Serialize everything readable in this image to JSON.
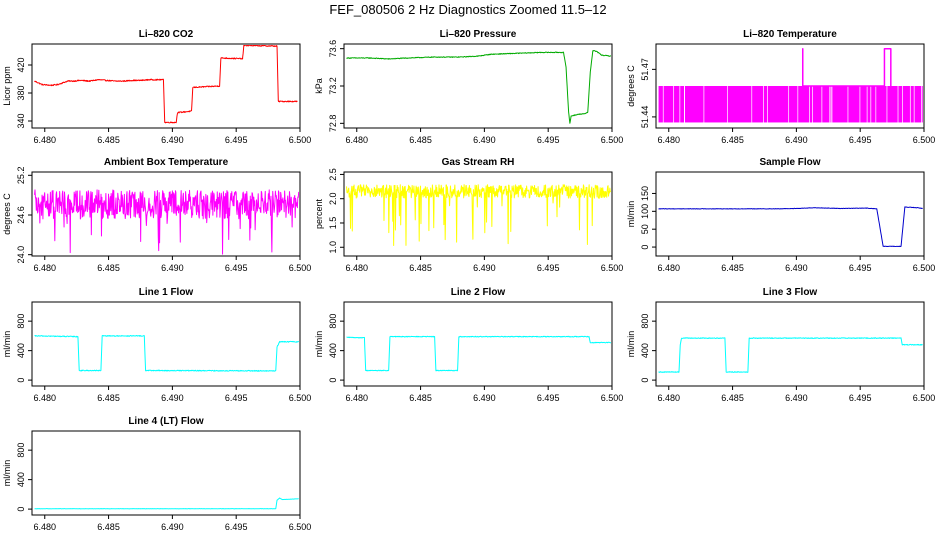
{
  "title": "FEF_080506  2 Hz Diagnostics Zoomed 11.5–12",
  "chart_data": [
    {
      "type": "line",
      "title": "Li–820 CO2",
      "ylabel": "Licor ppm",
      "color": "#ff0000",
      "xlim": [
        6.479,
        6.5
      ],
      "ylim": [
        330,
        450
      ],
      "yticks": [
        "340",
        "380",
        "420"
      ],
      "ytick_values": [
        340,
        380,
        420
      ],
      "noise": 0.8,
      "x_ticks": [
        "6.480",
        "6.485",
        "6.490",
        "6.495",
        "6.500"
      ],
      "x_tick_values": [
        6.48,
        6.485,
        6.49,
        6.495,
        6.5
      ],
      "series": [
        {
          "x": [
            6.4792,
            6.4798,
            6.4805,
            6.481,
            6.4818,
            6.4822,
            6.4828,
            6.4835,
            6.4842,
            6.4848,
            6.4855,
            6.4862,
            6.4868,
            6.4875,
            6.4882,
            6.4888,
            6.4893,
            6.4894,
            6.4903,
            6.4904,
            6.4915,
            6.4916,
            6.4937,
            6.4938,
            6.4955,
            6.4956,
            6.4982,
            6.4983,
            6.4998
          ],
          "y": [
            397,
            392,
            391,
            392,
            397,
            397,
            398,
            397,
            399,
            398,
            397,
            397,
            398,
            398,
            399,
            399,
            399,
            338,
            338,
            352,
            354,
            388,
            390,
            430,
            429,
            448,
            447,
            368,
            368
          ]
        }
      ]
    },
    {
      "type": "line",
      "title": "Li–820 Pressure",
      "ylabel": "kPa",
      "color": "#00aa00",
      "xlim": [
        6.479,
        6.5
      ],
      "ylim": [
        72.75,
        73.65
      ],
      "yticks": [
        "72.8",
        "73.2",
        "73.6"
      ],
      "ytick_values": [
        72.8,
        73.2,
        73.6
      ],
      "noise": 0.004,
      "x_ticks": [
        "6.480",
        "6.485",
        "6.490",
        "6.495",
        "6.500"
      ],
      "x_tick_values": [
        6.48,
        6.485,
        6.49,
        6.495,
        6.5
      ],
      "series": [
        {
          "x": [
            6.4792,
            6.481,
            6.4825,
            6.484,
            6.486,
            6.488,
            6.4895,
            6.4905,
            6.4925,
            6.4945,
            6.4962,
            6.4964,
            6.4966,
            6.4967,
            6.4968,
            6.4975,
            6.4978,
            6.4981,
            6.4983,
            6.4985,
            6.4988,
            6.4992,
            6.4999
          ],
          "y": [
            73.5,
            73.5,
            73.49,
            73.5,
            73.51,
            73.51,
            73.52,
            73.54,
            73.55,
            73.56,
            73.56,
            73.4,
            72.92,
            72.8,
            72.88,
            72.9,
            72.9,
            72.92,
            73.35,
            73.58,
            73.57,
            73.53,
            73.52
          ]
        }
      ]
    },
    {
      "type": "line",
      "title": "Li–820 Temperature",
      "ylabel": "degrees C",
      "color": "#ff00ff",
      "xlim": [
        6.479,
        6.5
      ],
      "ylim": [
        51.433,
        51.486
      ],
      "yticks": [
        "51.44",
        "51.47"
      ],
      "ytick_values": [
        51.44,
        51.47
      ],
      "noise": 0,
      "x_ticks": [
        "6.480",
        "6.485",
        "6.490",
        "6.495",
        "6.500"
      ],
      "x_tick_values": [
        6.48,
        6.485,
        6.49,
        6.495,
        6.5
      ],
      "band": [
        51.4365,
        51.4595
      ],
      "series": [
        {
          "x": [
            6.4905,
            6.4905,
            6.4905,
            6.4969,
            6.4969,
            6.4969,
            6.4969,
            6.4974,
            6.4974
          ],
          "y": [
            51.4595,
            51.483,
            51.4595,
            51.4595,
            51.483,
            51.483,
            51.483,
            51.483,
            51.4595
          ]
        }
      ]
    },
    {
      "type": "line",
      "title": "Ambient Box Temperature",
      "ylabel": "degrees C",
      "color": "#ff00ff",
      "xlim": [
        6.479,
        6.5
      ],
      "ylim": [
        23.98,
        25.25
      ],
      "yticks": [
        "24.0",
        "24.6",
        "25.2"
      ],
      "ytick_values": [
        24.0,
        24.6,
        25.2
      ],
      "noise": 0.22,
      "x_ticks": [
        "6.480",
        "6.485",
        "6.490",
        "6.495",
        "6.500"
      ],
      "x_tick_values": [
        6.48,
        6.485,
        6.49,
        6.495,
        6.5
      ],
      "series": [
        {
          "x": [
            6.4792,
            6.4999
          ],
          "y": [
            24.76,
            24.76
          ]
        }
      ]
    },
    {
      "type": "line",
      "title": "Gas Stream RH",
      "ylabel": "percent",
      "color": "#ffff00",
      "xlim": [
        6.479,
        6.5
      ],
      "ylim": [
        0.82,
        2.55
      ],
      "yticks": [
        "1.0",
        "1.5",
        "2.0",
        "2.5"
      ],
      "ytick_values": [
        1.0,
        1.5,
        2.0,
        2.5
      ],
      "noise": 0.14,
      "x_ticks": [
        "6.480",
        "6.485",
        "6.490",
        "6.495",
        "6.500"
      ],
      "x_tick_values": [
        6.48,
        6.485,
        6.49,
        6.495,
        6.5
      ],
      "series": [
        {
          "x": [
            6.4792,
            6.4999
          ],
          "y": [
            2.15,
            2.15
          ]
        }
      ]
    },
    {
      "type": "line",
      "title": "Sample Flow",
      "ylabel": "ml/min",
      "color": "#0000cc",
      "xlim": [
        6.479,
        6.5
      ],
      "ylim": [
        -25,
        210
      ],
      "yticks": [
        "0",
        "50",
        "100",
        "150"
      ],
      "ytick_values": [
        0,
        50,
        100,
        150
      ],
      "noise": 0.6,
      "x_ticks": [
        "6.480",
        "6.485",
        "6.490",
        "6.495",
        "6.500"
      ],
      "x_tick_values": [
        6.48,
        6.485,
        6.49,
        6.495,
        6.5
      ],
      "series": [
        {
          "x": [
            6.4792,
            6.485,
            6.4885,
            6.49,
            6.4915,
            6.4935,
            6.4955,
            6.4963,
            6.4968,
            6.4982,
            6.4985,
            6.4995,
            6.4999
          ],
          "y": [
            107,
            107,
            107,
            108,
            110,
            108,
            109,
            107,
            2,
            2,
            112,
            110,
            108
          ]
        }
      ]
    },
    {
      "type": "line",
      "title": "Line 1 Flow",
      "ylabel": "ml/min",
      "color": "#00ffff",
      "xlim": [
        6.479,
        6.5
      ],
      "ylim": [
        -80,
        1060
      ],
      "yticks": [
        "0",
        "400",
        "800"
      ],
      "ytick_values": [
        0,
        400,
        800
      ],
      "noise": 6,
      "x_ticks": [
        "6.480",
        "6.485",
        "6.490",
        "6.495",
        "6.500"
      ],
      "x_tick_values": [
        6.48,
        6.485,
        6.49,
        6.495,
        6.5
      ],
      "series": [
        {
          "x": [
            6.4792,
            6.4826,
            6.4827,
            6.4844,
            6.4845,
            6.4878,
            6.4879,
            6.4981,
            6.4982,
            6.4984,
            6.4999
          ],
          "y": [
            600,
            590,
            130,
            130,
            600,
            600,
            130,
            125,
            450,
            520,
            520
          ]
        }
      ]
    },
    {
      "type": "line",
      "title": "Line 2 Flow",
      "ylabel": "ml/min",
      "color": "#00ffff",
      "xlim": [
        6.479,
        6.5
      ],
      "ylim": [
        -80,
        1060
      ],
      "yticks": [
        "0",
        "400",
        "800"
      ],
      "ytick_values": [
        0,
        400,
        800
      ],
      "noise": 5,
      "x_ticks": [
        "6.480",
        "6.485",
        "6.490",
        "6.495",
        "6.500"
      ],
      "x_tick_values": [
        6.48,
        6.485,
        6.49,
        6.495,
        6.5
      ],
      "series": [
        {
          "x": [
            6.4792,
            6.4806,
            6.4807,
            6.4825,
            6.4826,
            6.4861,
            6.4862,
            6.4879,
            6.488,
            6.4982,
            6.4983,
            6.4999
          ],
          "y": [
            580,
            575,
            130,
            130,
            590,
            590,
            130,
            130,
            590,
            590,
            510,
            510
          ]
        }
      ]
    },
    {
      "type": "line",
      "title": "Line 3 Flow",
      "ylabel": "ml/min",
      "color": "#00ffff",
      "xlim": [
        6.479,
        6.5
      ],
      "ylim": [
        -80,
        1060
      ],
      "yticks": [
        "0",
        "400",
        "800"
      ],
      "ytick_values": [
        0,
        400,
        800
      ],
      "noise": 5,
      "x_ticks": [
        "6.480",
        "6.485",
        "6.490",
        "6.495",
        "6.500"
      ],
      "x_tick_values": [
        6.48,
        6.485,
        6.49,
        6.495,
        6.5
      ],
      "series": [
        {
          "x": [
            6.4792,
            6.4808,
            6.4809,
            6.481,
            6.4844,
            6.4845,
            6.4862,
            6.4863,
            6.4982,
            6.4983,
            6.4999
          ],
          "y": [
            110,
            110,
            480,
            570,
            570,
            110,
            110,
            570,
            570,
            480,
            480
          ]
        }
      ]
    },
    {
      "type": "line",
      "title": "Line 4 (LT) Flow",
      "ylabel": "ml/min",
      "color": "#00ffff",
      "xlim": [
        6.479,
        6.5
      ],
      "ylim": [
        -80,
        1060
      ],
      "yticks": [
        "0",
        "400",
        "800"
      ],
      "ytick_values": [
        0,
        400,
        800
      ],
      "noise": 1.5,
      "x_ticks": [
        "6.480",
        "6.485",
        "6.490",
        "6.495",
        "6.500"
      ],
      "x_tick_values": [
        6.48,
        6.485,
        6.49,
        6.495,
        6.5
      ],
      "series": [
        {
          "x": [
            6.4792,
            6.4981,
            6.4982,
            6.4984,
            6.4986,
            6.4999
          ],
          "y": [
            5,
            5,
            120,
            150,
            130,
            140
          ]
        }
      ]
    }
  ]
}
